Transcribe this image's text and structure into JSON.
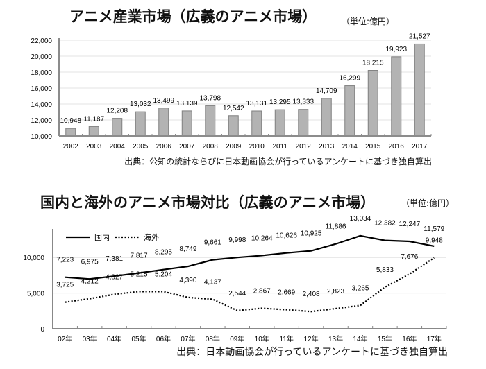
{
  "chart_data": [
    {
      "type": "bar",
      "title": "アニメ産業市場（広義のアニメ市場）",
      "unit": "（単位:億円）",
      "source": "出典：公知の統計ならびに日本動画協会が行っているアンケートに基づき独自算出",
      "categories": [
        "2002",
        "2003",
        "2004",
        "2005",
        "2006",
        "2007",
        "2008",
        "2009",
        "2010",
        "2011",
        "2012",
        "2013",
        "2014",
        "2015",
        "2016",
        "2017"
      ],
      "values": [
        10948,
        11187,
        12208,
        13032,
        13499,
        13139,
        13798,
        12542,
        13131,
        13295,
        13333,
        14709,
        16299,
        18215,
        19923,
        21527
      ],
      "value_labels": [
        "10,948",
        "11,187",
        "12,208",
        "13,032",
        "13,499",
        "13,139",
        "13,798",
        "12,542",
        "13,131",
        "13,295",
        "13,333",
        "14,709",
        "16,299",
        "18,215",
        "19,923",
        "21,527"
      ],
      "ylim": [
        10000,
        22000
      ],
      "yticks": [
        10000,
        12000,
        14000,
        16000,
        18000,
        20000,
        22000
      ],
      "ytick_labels": [
        "10,000",
        "12,000",
        "14,000",
        "16,000",
        "18,000",
        "20,000",
        "22,000"
      ],
      "grid": true,
      "colors": {
        "bar": "#b3b3b3",
        "bar_edge": "#808080",
        "axis": "#8c8c8c"
      }
    },
    {
      "type": "line",
      "title": "国内と海外のアニメ市場対比（広義のアニメ市場）",
      "unit": "（単位:億円）",
      "source": "出典：日本動画協会が行っているアンケートに基づき独自算出",
      "categories": [
        "02年",
        "03年",
        "04年",
        "05年",
        "06年",
        "07年",
        "08年",
        "09年",
        "10年",
        "11年",
        "12年",
        "13年",
        "14年",
        "15年",
        "16年",
        "17年"
      ],
      "series": [
        {
          "name": "国内",
          "style": "solid",
          "values": [
            7223,
            6975,
            7381,
            7817,
            8295,
            8749,
            9661,
            9998,
            10264,
            10626,
            10925,
            11886,
            13034,
            12382,
            12247,
            11579
          ],
          "labels": [
            "7,223",
            "6,975",
            "7,381",
            "7,817",
            "8,295",
            "8,749",
            "9,661",
            "9,998",
            "10,264",
            "10,626",
            "10,925",
            "11,886",
            "13,034",
            "12,382",
            "12,247",
            "11,579"
          ]
        },
        {
          "name": "海外",
          "style": "dotted",
          "values": [
            3725,
            4212,
            4827,
            5215,
            5204,
            4390,
            4137,
            2544,
            2867,
            2669,
            2408,
            2823,
            3265,
            5833,
            7676,
            9948
          ],
          "labels": [
            "3,725",
            "4,212",
            "4,827",
            "5,215",
            "5,204",
            "4,390",
            "4,137",
            "2,544",
            "2,867",
            "2,669",
            "2,408",
            "2,823",
            "3,265",
            "5,833",
            "7,676",
            "9,948"
          ]
        }
      ],
      "ylim": [
        0,
        14000
      ],
      "yticks": [
        0,
        5000,
        10000
      ],
      "ytick_labels": [
        "0",
        "5,000",
        "10,000"
      ],
      "legend": "top-left",
      "grid": true
    }
  ]
}
